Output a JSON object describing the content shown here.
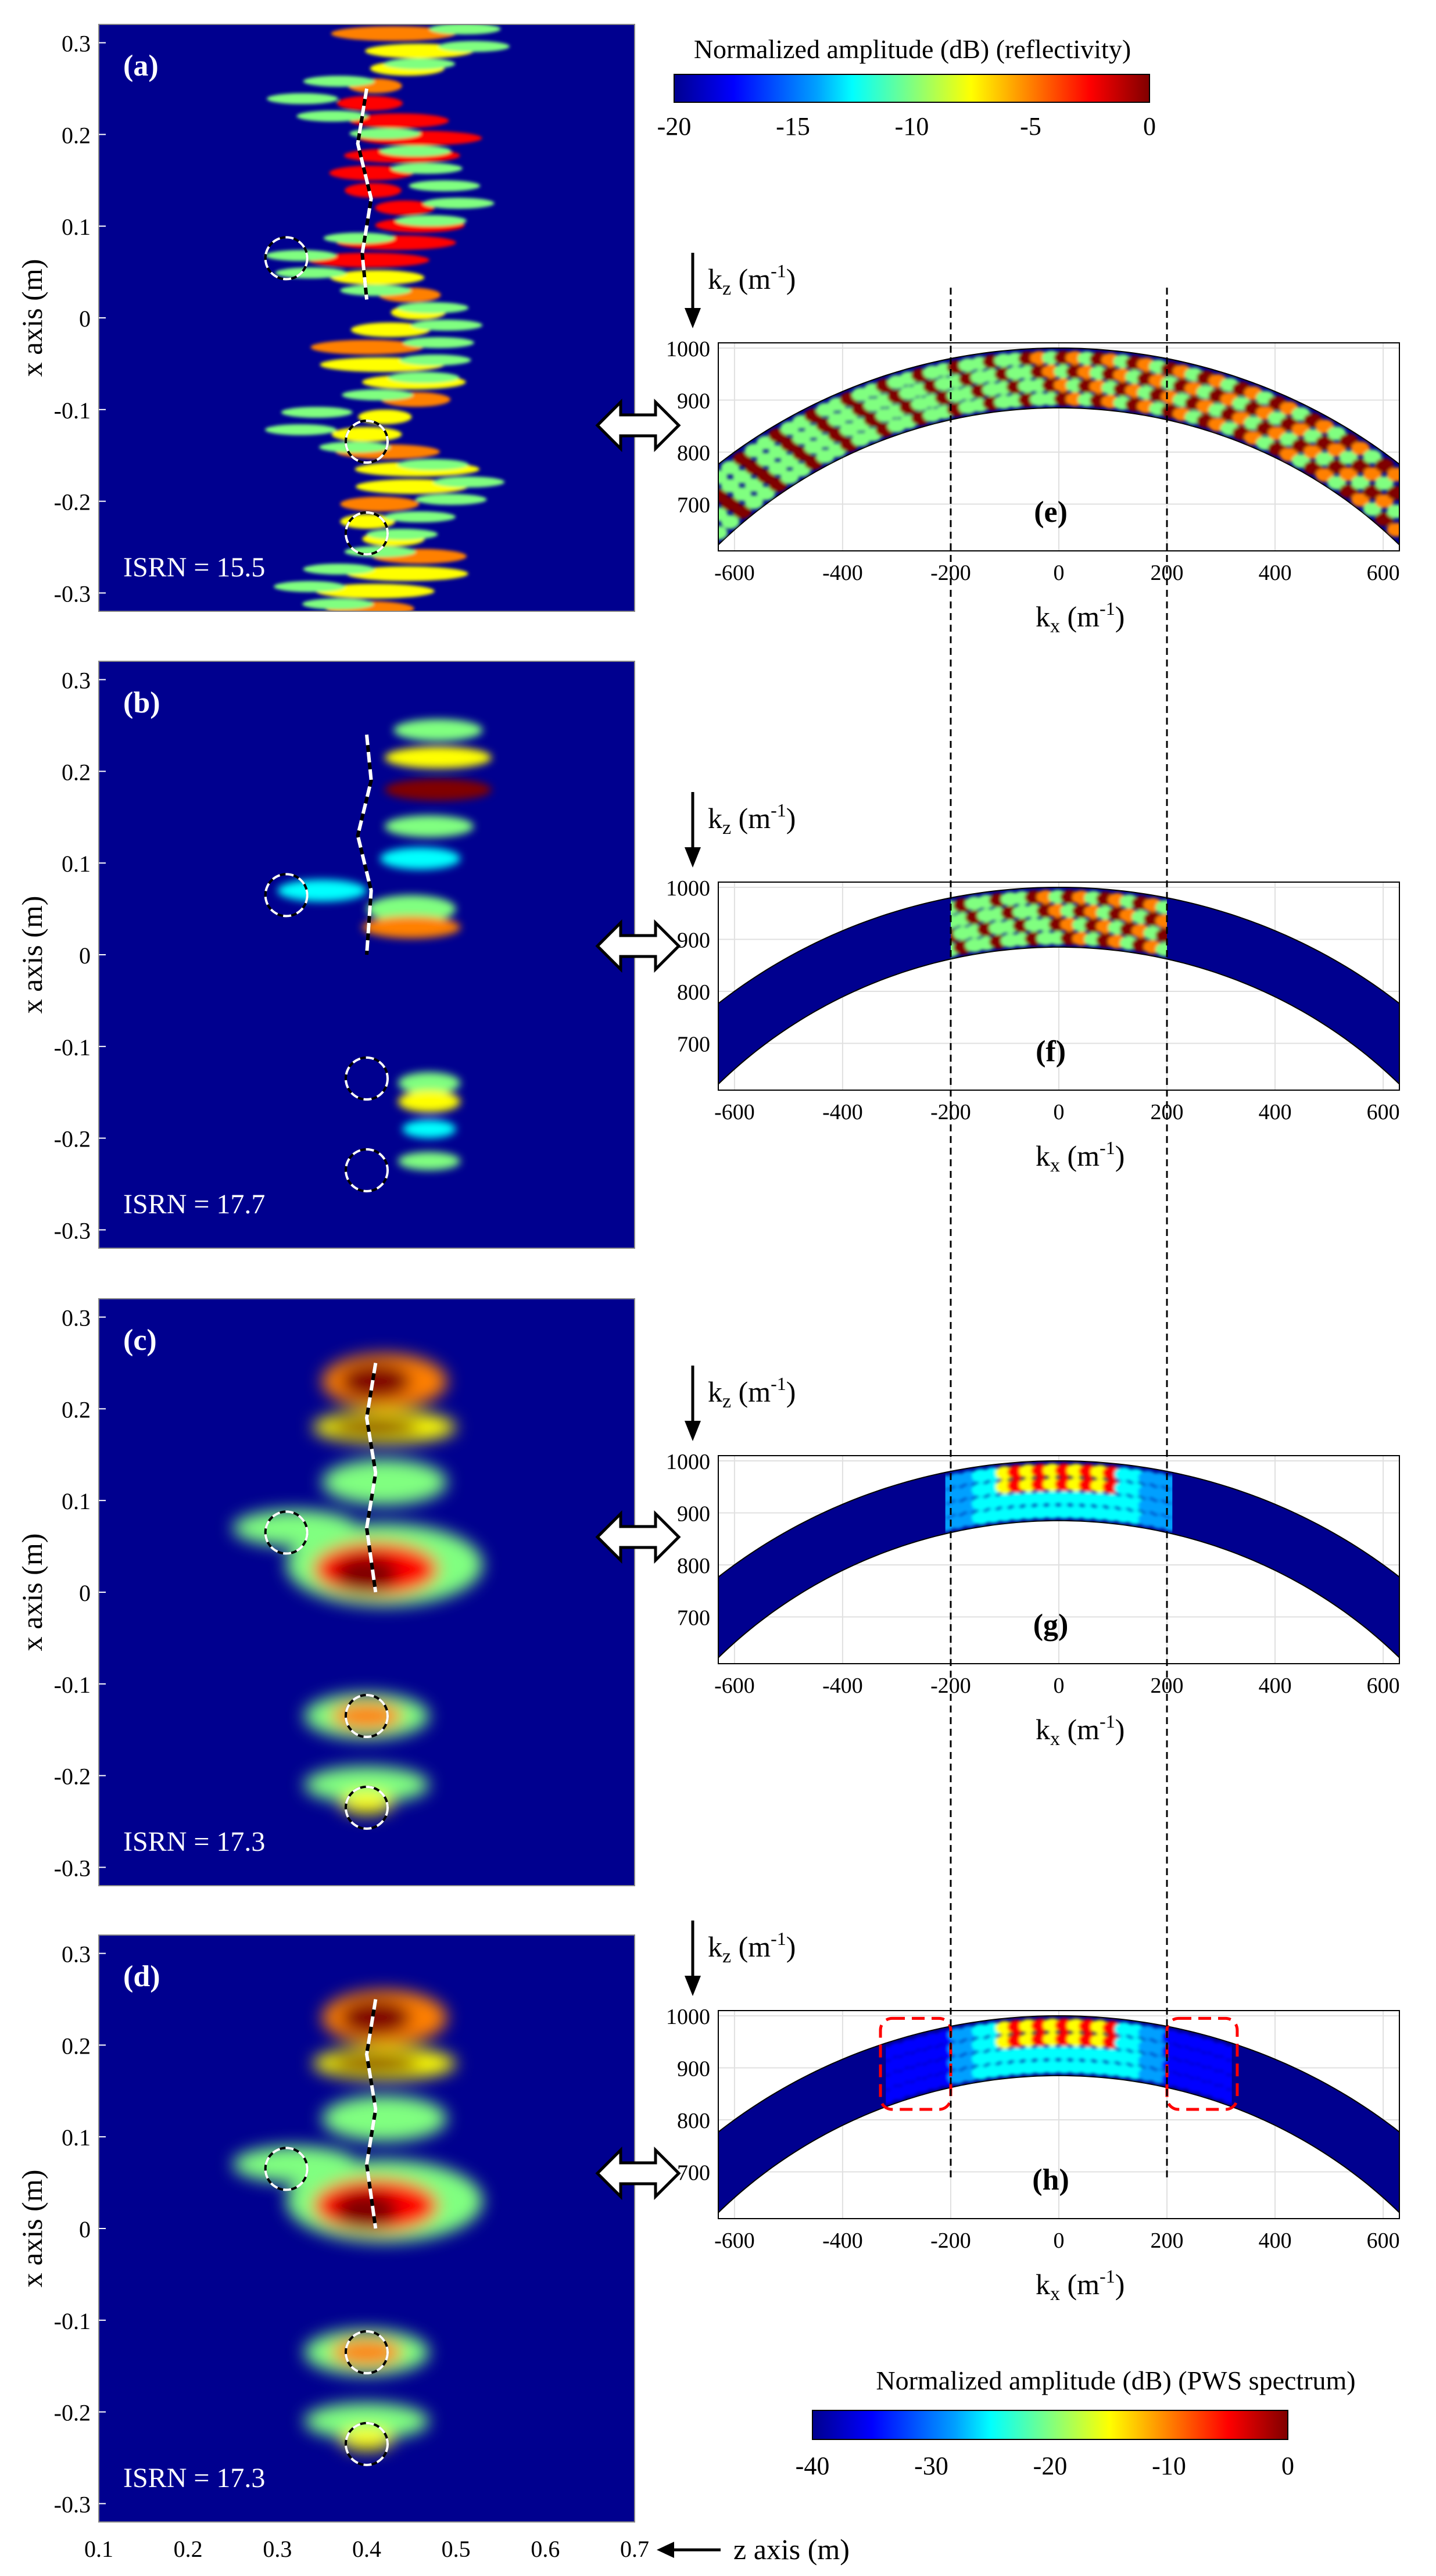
{
  "colorbar_reflectivity": {
    "title": "Normalized amplitude (dB) (reflectivity)",
    "ticks": [
      "-20",
      "-15",
      "-10",
      "-5",
      "0"
    ]
  },
  "colorbar_pws": {
    "title": "Normalized amplitude (dB) (PWS spectrum)",
    "ticks": [
      "-40",
      "-30",
      "-20",
      "-10",
      "0"
    ]
  },
  "colormap": [
    "#00008f",
    "#0000ff",
    "#00a0ff",
    "#00ffff",
    "#80ff80",
    "#ffff00",
    "#ff8000",
    "#ff0000",
    "#800000"
  ],
  "image_panels": {
    "ylabel": "x axis (m)",
    "yticks": [
      "0.3",
      "0.2",
      "0.1",
      "0",
      "-0.1",
      "-0.2",
      "-0.3"
    ],
    "xticks": [
      "0.1",
      "0.2",
      "0.3",
      "0.4",
      "0.5",
      "0.6",
      "0.7"
    ],
    "xlabel": "z axis (m)",
    "panels": [
      {
        "label": "(a)",
        "metric": "ISRN = 15.5"
      },
      {
        "label": "(b)",
        "metric": "ISRN = 17.7"
      },
      {
        "label": "(c)",
        "metric": "ISRN = 17.3"
      },
      {
        "label": "(d)",
        "metric": "ISRN = 17.3"
      }
    ]
  },
  "spectrum_panels": {
    "kz_label": "k",
    "kz_sub": "z",
    "kx_label": "k",
    "kx_sub": "x",
    "unit_pre": " (m",
    "unit_exp": "-1",
    "unit_post": ")",
    "yticks": [
      "1000",
      "900",
      "800",
      "700"
    ],
    "xticks": [
      "-600",
      "-400",
      "-200",
      "0",
      "200",
      "400",
      "600"
    ],
    "panels": [
      {
        "label": "(e)"
      },
      {
        "label": "(f)"
      },
      {
        "label": "(g)"
      },
      {
        "label": "(h)"
      }
    ]
  },
  "chart_data": [
    {
      "type": "heatmap",
      "panel": "(a)",
      "title": "",
      "xlabel": "z axis (m)",
      "ylabel": "x axis (m)",
      "xlim": [
        0.1,
        0.7
      ],
      "ylim": [
        -0.32,
        0.32
      ],
      "colorbar_range_db": [
        -20,
        0
      ],
      "annotation": "ISRN = 15.5",
      "targets_circled": [
        [
          0.31,
          0.065
        ],
        [
          0.4,
          -0.135
        ],
        [
          0.4,
          -0.235
        ]
      ]
    },
    {
      "type": "heatmap",
      "panel": "(b)",
      "title": "",
      "xlabel": "z axis (m)",
      "ylabel": "x axis (m)",
      "xlim": [
        0.1,
        0.7
      ],
      "ylim": [
        -0.32,
        0.32
      ],
      "colorbar_range_db": [
        -20,
        0
      ],
      "annotation": "ISRN = 17.7",
      "targets_circled": [
        [
          0.31,
          0.065
        ],
        [
          0.4,
          -0.135
        ],
        [
          0.4,
          -0.235
        ]
      ]
    },
    {
      "type": "heatmap",
      "panel": "(c)",
      "title": "",
      "xlabel": "z axis (m)",
      "ylabel": "x axis (m)",
      "xlim": [
        0.1,
        0.7
      ],
      "ylim": [
        -0.32,
        0.32
      ],
      "colorbar_range_db": [
        -20,
        0
      ],
      "annotation": "ISRN = 17.3",
      "targets_circled": [
        [
          0.31,
          0.065
        ],
        [
          0.4,
          -0.135
        ],
        [
          0.4,
          -0.235
        ]
      ]
    },
    {
      "type": "heatmap",
      "panel": "(d)",
      "title": "",
      "xlabel": "z axis (m)",
      "ylabel": "x axis (m)",
      "xlim": [
        0.1,
        0.7
      ],
      "ylim": [
        -0.32,
        0.32
      ],
      "colorbar_range_db": [
        -20,
        0
      ],
      "annotation": "ISRN = 17.3",
      "targets_circled": [
        [
          0.31,
          0.065
        ],
        [
          0.4,
          -0.135
        ],
        [
          0.4,
          -0.235
        ]
      ]
    },
    {
      "type": "heatmap",
      "panel": "(e)",
      "title": "",
      "xlabel": "k_x (m^-1)",
      "ylabel": "k_z (m^-1)",
      "xlim": [
        -630,
        630
      ],
      "ylim": [
        610,
        1010
      ],
      "colorbar_range_db": [
        -40,
        0
      ],
      "band_filled_kx": [
        -630,
        630
      ],
      "selection_lines_kx": [
        -200,
        200
      ]
    },
    {
      "type": "heatmap",
      "panel": "(f)",
      "title": "",
      "xlabel": "k_x (m^-1)",
      "ylabel": "k_z (m^-1)",
      "xlim": [
        -630,
        630
      ],
      "ylim": [
        610,
        1010
      ],
      "colorbar_range_db": [
        -40,
        0
      ],
      "band_filled_kx": [
        -200,
        200
      ],
      "selection_lines_kx": [
        -200,
        200
      ]
    },
    {
      "type": "heatmap",
      "panel": "(g)",
      "title": "",
      "xlabel": "k_x (m^-1)",
      "ylabel": "k_z (m^-1)",
      "xlim": [
        -630,
        630
      ],
      "ylim": [
        610,
        1010
      ],
      "colorbar_range_db": [
        -40,
        0
      ],
      "band_filled_kx": [
        -210,
        210
      ],
      "selection_lines_kx": [
        -200,
        200
      ]
    },
    {
      "type": "heatmap",
      "panel": "(h)",
      "title": "",
      "xlabel": "k_x (m^-1)",
      "ylabel": "k_z (m^-1)",
      "xlim": [
        -630,
        630
      ],
      "ylim": [
        610,
        1010
      ],
      "colorbar_range_db": [
        -40,
        0
      ],
      "band_filled_kx": [
        -320,
        320
      ],
      "selection_lines_kx": [
        -200,
        200
      ],
      "highlight_boxes_kx": [
        [
          -330,
          -200
        ],
        [
          200,
          330
        ]
      ]
    }
  ]
}
